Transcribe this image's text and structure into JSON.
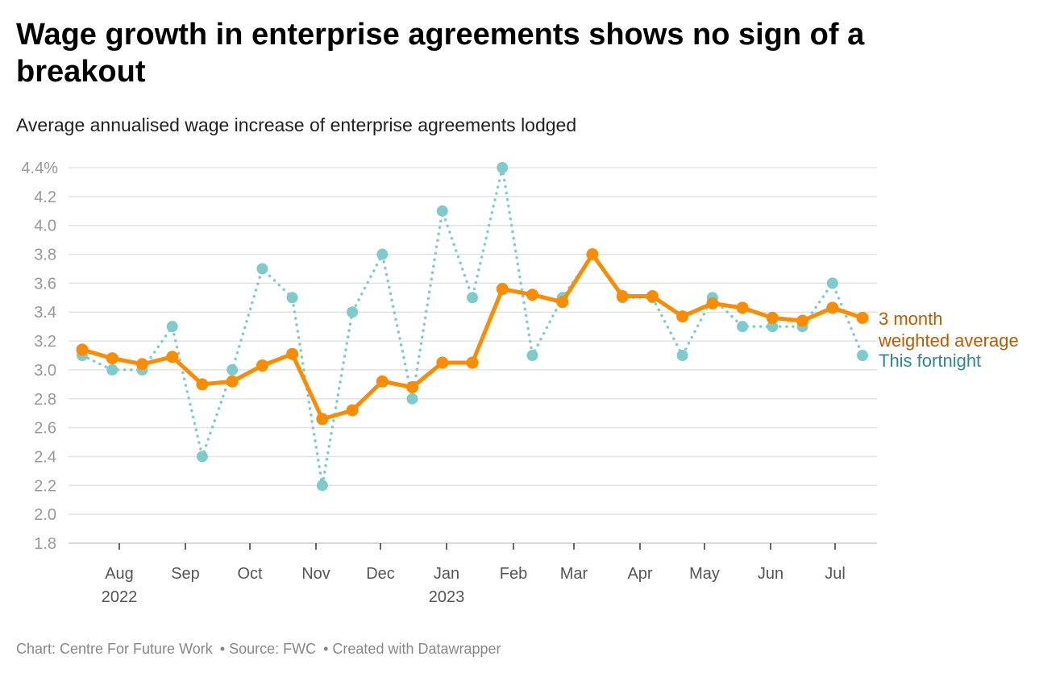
{
  "title": "Wage growth in enterprise agreements shows no sign of a breakout",
  "subtitle": "Average annualised wage increase of enterprise agreements lodged",
  "footer": {
    "chart": "Chart: Centre For Future Work",
    "source": "• Source: FWC",
    "created": "• Created with Datawrapper"
  },
  "chart_data": {
    "type": "line",
    "title": "Wage growth in enterprise agreements shows no sign of a breakout",
    "ylim": [
      1.8,
      4.4
    ],
    "yticks": [
      "1.8",
      "2.0",
      "2.2",
      "2.4",
      "2.6",
      "2.8",
      "3.0",
      "3.2",
      "3.4",
      "3.6",
      "3.8",
      "4.0",
      "4.2",
      "4.4%"
    ],
    "xticks": [
      {
        "label": "Aug",
        "year": "2022"
      },
      {
        "label": "Sep"
      },
      {
        "label": "Oct"
      },
      {
        "label": "Nov"
      },
      {
        "label": "Dec"
      },
      {
        "label": "Jan",
        "year": "2023"
      },
      {
        "label": "Feb"
      },
      {
        "label": "Mar"
      },
      {
        "label": "Apr"
      },
      {
        "label": "May"
      },
      {
        "label": "Jun"
      },
      {
        "label": "Jul"
      }
    ],
    "grid": true,
    "legend": "right, inline labels",
    "series": [
      {
        "name": "This fortnight",
        "color": "#7ecbcc",
        "label_color": "#2f8a8c",
        "style": "dotted",
        "values": [
          3.1,
          3.0,
          3.0,
          3.3,
          2.4,
          3.0,
          3.7,
          3.5,
          2.2,
          3.4,
          3.8,
          2.8,
          4.1,
          3.5,
          4.4,
          3.1,
          3.5,
          3.8,
          3.5,
          3.5,
          3.1,
          3.5,
          3.3,
          3.3,
          3.3,
          3.6,
          3.1
        ]
      },
      {
        "name": "3 month weighted average",
        "name_lines": [
          "3 month",
          "weighted average"
        ],
        "color": "#f98c00",
        "label_color": "#c05a00",
        "style": "solid",
        "values": [
          3.14,
          3.08,
          3.04,
          3.09,
          2.9,
          2.92,
          3.03,
          3.11,
          2.66,
          2.72,
          2.92,
          2.88,
          3.05,
          3.05,
          3.56,
          3.52,
          3.47,
          3.8,
          3.51,
          3.51,
          3.37,
          3.46,
          3.43,
          3.36,
          3.34,
          3.43,
          3.36
        ]
      }
    ]
  }
}
